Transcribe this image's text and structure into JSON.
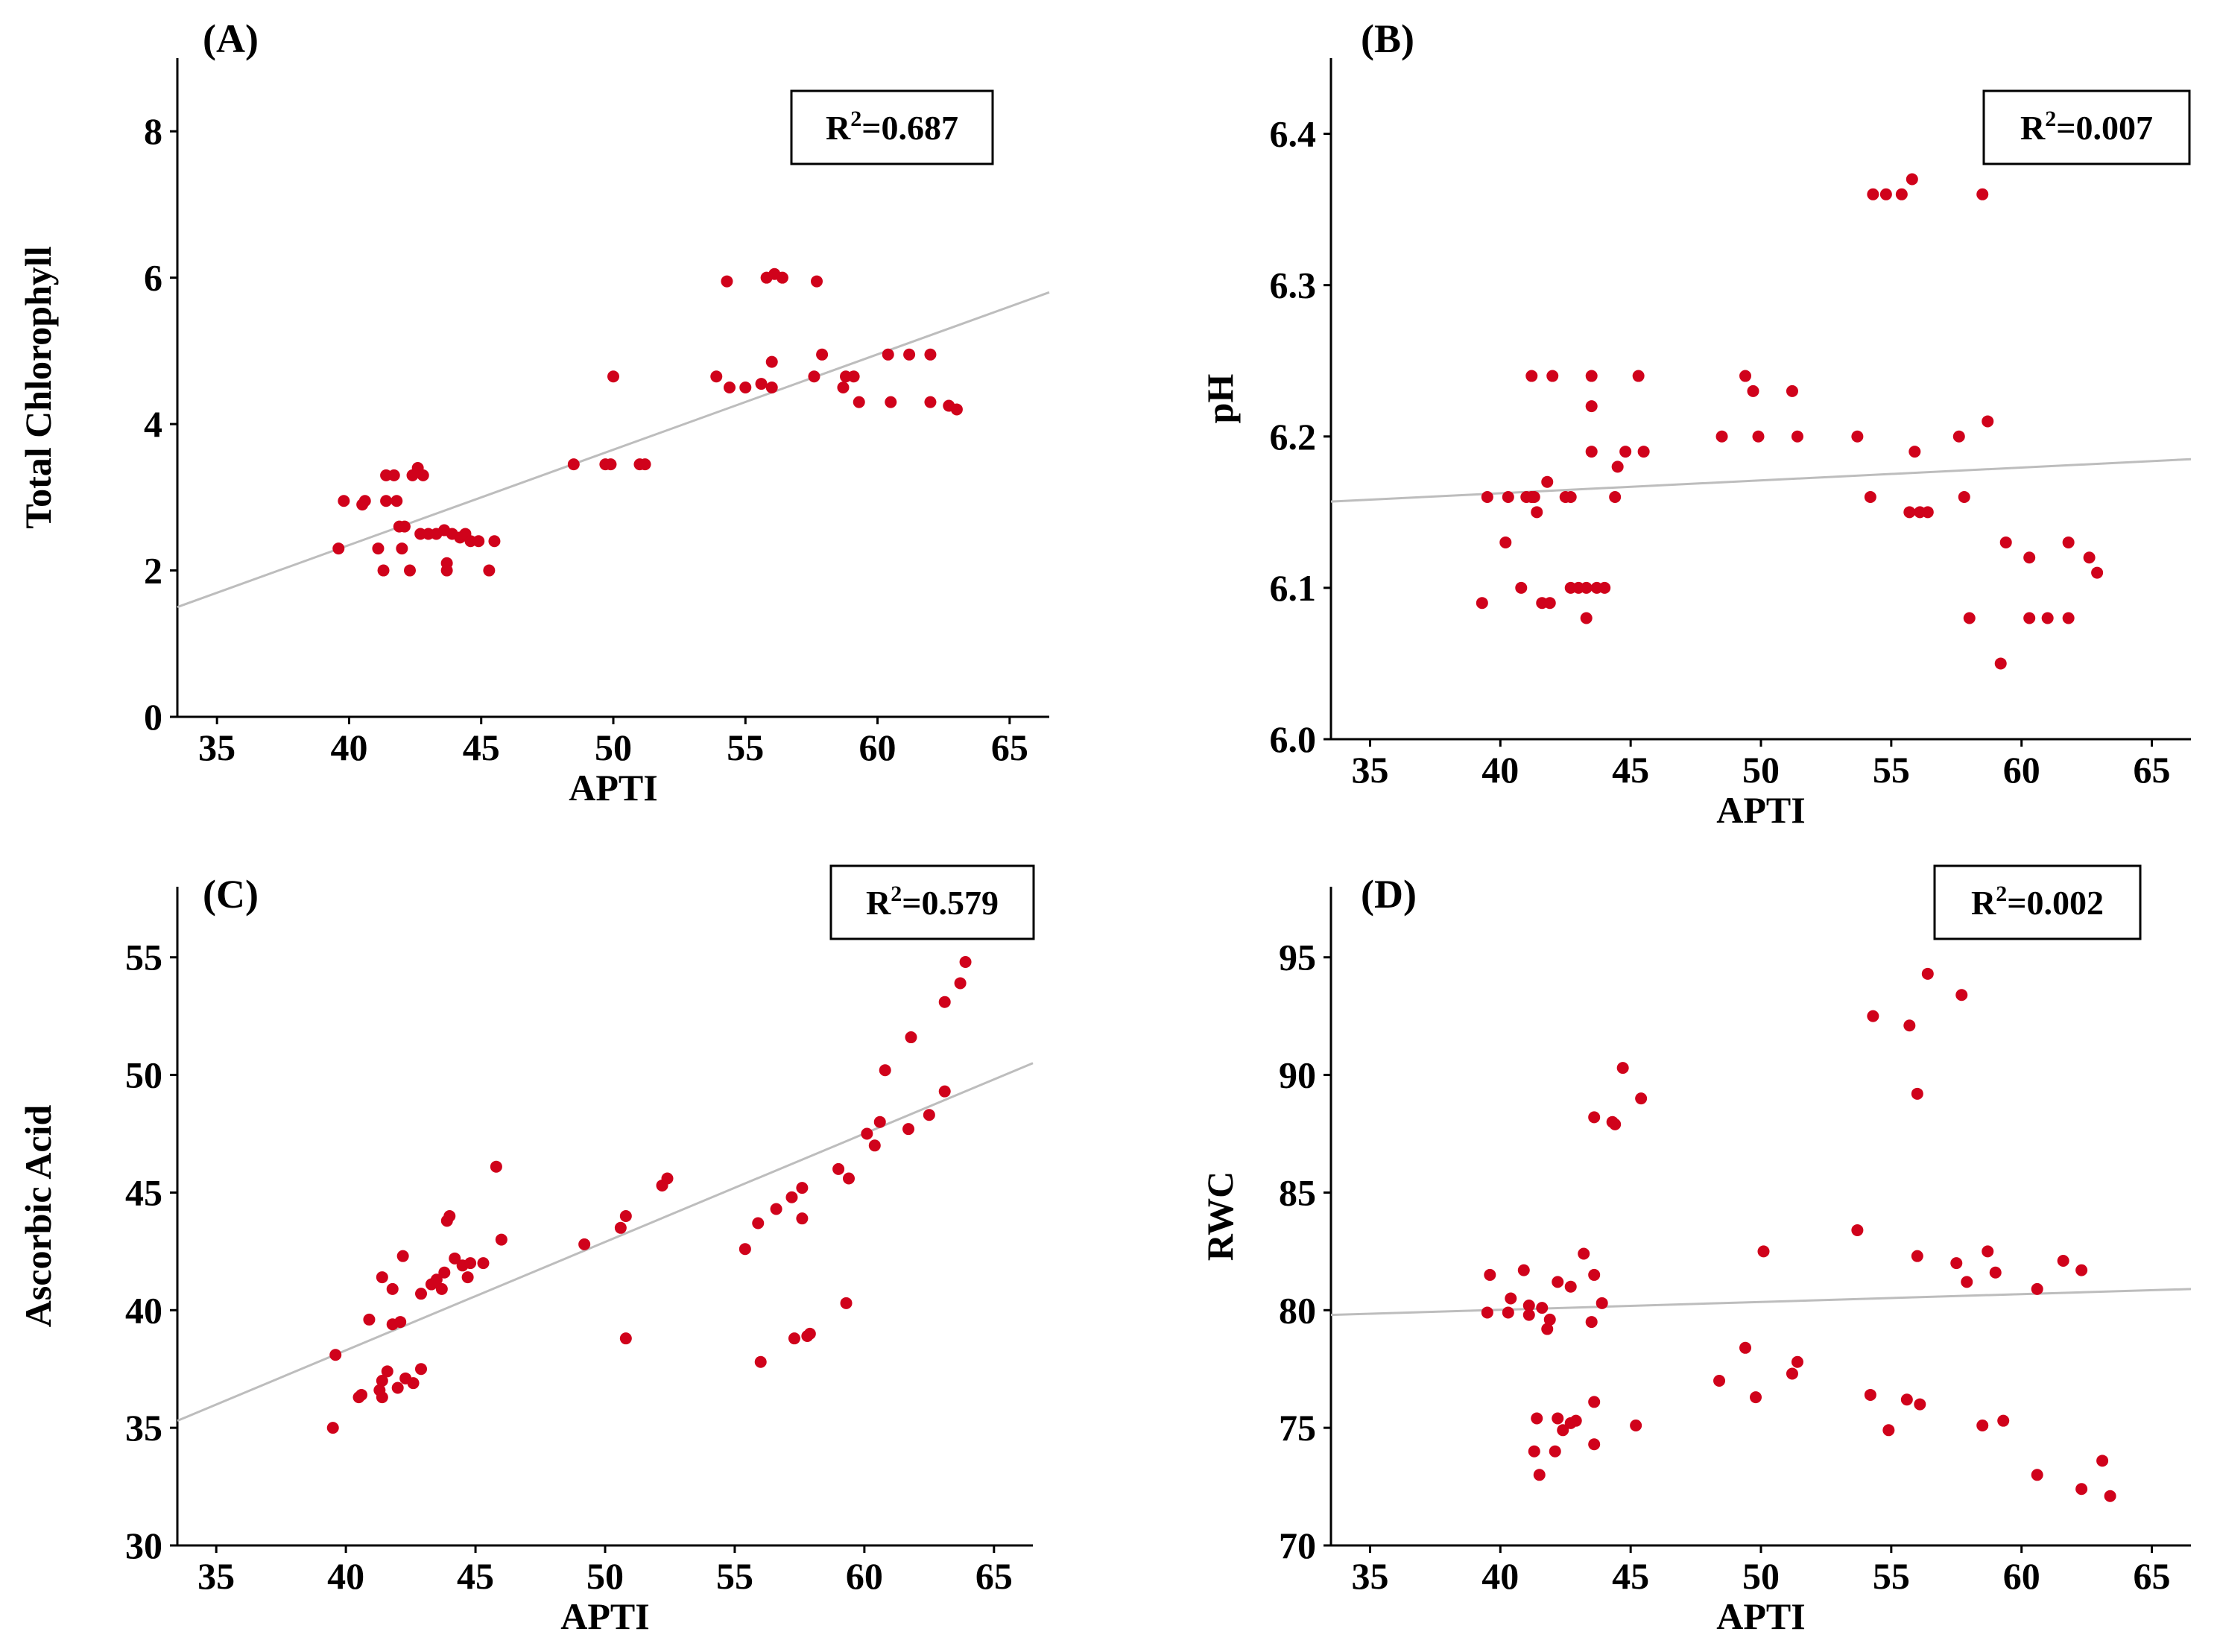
{
  "chart_data": [
    {
      "type": "scatter",
      "panel_label": "(A)",
      "xlabel": "APTI",
      "ylabel": "Total Chlorophyll",
      "xlim": [
        33.5,
        66.5
      ],
      "ylim": [
        0,
        9
      ],
      "xticks": [
        35,
        40,
        45,
        50,
        55,
        60,
        65
      ],
      "yticks": [
        0,
        2,
        4,
        6,
        8
      ],
      "r2_base": "R",
      "r2_sup": "2",
      "r2_value": "=0.687",
      "point_color": "#d0021b",
      "line_color": "#bdbdbd",
      "fit_line": {
        "x": [
          33.5,
          66.5
        ],
        "y": [
          1.5,
          5.8
        ]
      },
      "points": [
        [
          39.6,
          2.3
        ],
        [
          39.8,
          2.95
        ],
        [
          40.5,
          2.9
        ],
        [
          40.6,
          2.95
        ],
        [
          41.1,
          2.3
        ],
        [
          41.3,
          2.0
        ],
        [
          41.4,
          3.3
        ],
        [
          41.4,
          2.95
        ],
        [
          41.7,
          3.3
        ],
        [
          41.8,
          2.95
        ],
        [
          41.9,
          2.6
        ],
        [
          42.0,
          2.3
        ],
        [
          42.1,
          2.6
        ],
        [
          42.3,
          2.0
        ],
        [
          42.4,
          3.3
        ],
        [
          42.6,
          3.4
        ],
        [
          42.7,
          2.5
        ],
        [
          42.8,
          3.3
        ],
        [
          43.0,
          2.5
        ],
        [
          43.3,
          2.5
        ],
        [
          43.6,
          2.55
        ],
        [
          43.7,
          2.1
        ],
        [
          43.7,
          2.0
        ],
        [
          43.9,
          2.5
        ],
        [
          44.2,
          2.45
        ],
        [
          44.4,
          2.5
        ],
        [
          44.6,
          2.4
        ],
        [
          44.9,
          2.4
        ],
        [
          45.3,
          2.0
        ],
        [
          45.5,
          2.4
        ],
        [
          48.5,
          3.45
        ],
        [
          49.7,
          3.45
        ],
        [
          49.9,
          3.45
        ],
        [
          50.0,
          4.65
        ],
        [
          51.0,
          3.45
        ],
        [
          51.2,
          3.45
        ],
        [
          53.9,
          4.65
        ],
        [
          54.3,
          5.95
        ],
        [
          54.4,
          4.5
        ],
        [
          55.0,
          4.5
        ],
        [
          55.6,
          4.55
        ],
        [
          55.8,
          6.0
        ],
        [
          56.0,
          4.85
        ],
        [
          56.0,
          4.5
        ],
        [
          56.1,
          6.05
        ],
        [
          56.4,
          6.0
        ],
        [
          57.6,
          4.65
        ],
        [
          57.7,
          5.95
        ],
        [
          57.9,
          4.95
        ],
        [
          58.7,
          4.5
        ],
        [
          58.8,
          4.65
        ],
        [
          59.1,
          4.65
        ],
        [
          59.3,
          4.3
        ],
        [
          60.4,
          4.95
        ],
        [
          60.5,
          4.3
        ],
        [
          61.2,
          4.95
        ],
        [
          62.0,
          4.95
        ],
        [
          62.0,
          4.3
        ],
        [
          62.7,
          4.25
        ],
        [
          63.0,
          4.2
        ]
      ]
    },
    {
      "type": "scatter",
      "panel_label": "(B)",
      "xlabel": "APTI",
      "ylabel": "pH",
      "xlim": [
        33.5,
        66.5
      ],
      "ylim": [
        6.0,
        6.45
      ],
      "xticks": [
        35,
        40,
        45,
        50,
        55,
        60,
        65
      ],
      "yticks": [
        6.0,
        6.1,
        6.2,
        6.3,
        6.4
      ],
      "r2_base": "R",
      "r2_sup": "2",
      "r2_value": "=0.007",
      "point_color": "#d0021b",
      "line_color": "#bdbdbd",
      "fit_line": {
        "x": [
          33.5,
          66.5
        ],
        "y": [
          6.157,
          6.185
        ]
      },
      "points": [
        [
          39.3,
          6.09
        ],
        [
          39.5,
          6.16
        ],
        [
          40.2,
          6.13
        ],
        [
          40.3,
          6.16
        ],
        [
          40.8,
          6.1
        ],
        [
          41.0,
          6.16
        ],
        [
          41.2,
          6.24
        ],
        [
          41.2,
          6.16
        ],
        [
          41.3,
          6.16
        ],
        [
          41.4,
          6.15
        ],
        [
          41.6,
          6.09
        ],
        [
          41.8,
          6.17
        ],
        [
          41.9,
          6.09
        ],
        [
          42.0,
          6.24
        ],
        [
          42.5,
          6.16
        ],
        [
          42.7,
          6.16
        ],
        [
          42.7,
          6.1
        ],
        [
          43.0,
          6.1
        ],
        [
          43.3,
          6.1
        ],
        [
          43.3,
          6.08
        ],
        [
          43.5,
          6.24
        ],
        [
          43.5,
          6.22
        ],
        [
          43.5,
          6.19
        ],
        [
          43.7,
          6.1
        ],
        [
          44.0,
          6.1
        ],
        [
          44.4,
          6.16
        ],
        [
          44.5,
          6.18
        ],
        [
          44.8,
          6.19
        ],
        [
          45.3,
          6.24
        ],
        [
          45.5,
          6.19
        ],
        [
          48.5,
          6.2
        ],
        [
          49.4,
          6.24
        ],
        [
          49.7,
          6.23
        ],
        [
          49.9,
          6.2
        ],
        [
          51.2,
          6.23
        ],
        [
          51.4,
          6.2
        ],
        [
          53.7,
          6.2
        ],
        [
          54.2,
          6.16
        ],
        [
          54.3,
          6.36
        ],
        [
          54.8,
          6.36
        ],
        [
          55.4,
          6.36
        ],
        [
          55.7,
          6.15
        ],
        [
          55.8,
          6.37
        ],
        [
          55.9,
          6.19
        ],
        [
          56.1,
          6.15
        ],
        [
          56.4,
          6.15
        ],
        [
          57.6,
          6.2
        ],
        [
          57.8,
          6.16
        ],
        [
          58.0,
          6.08
        ],
        [
          58.5,
          6.36
        ],
        [
          58.7,
          6.21
        ],
        [
          59.2,
          6.05
        ],
        [
          59.4,
          6.13
        ],
        [
          60.3,
          6.12
        ],
        [
          60.3,
          6.08
        ],
        [
          61.0,
          6.08
        ],
        [
          61.8,
          6.08
        ],
        [
          61.8,
          6.13
        ],
        [
          62.6,
          6.12
        ],
        [
          62.9,
          6.11
        ]
      ]
    },
    {
      "type": "scatter",
      "panel_label": "(C)",
      "xlabel": "APTI",
      "ylabel": "Ascorbic Acid",
      "xlim": [
        33.5,
        66.5
      ],
      "ylim": [
        30,
        58
      ],
      "xticks": [
        35,
        40,
        45,
        50,
        55,
        60,
        65
      ],
      "yticks": [
        30,
        35,
        40,
        45,
        50,
        55
      ],
      "r2_base": "R",
      "r2_sup": "2",
      "r2_value": "=0.579",
      "point_color": "#d0021b",
      "line_color": "#bdbdbd",
      "fit_line": {
        "x": [
          33.5,
          66.5
        ],
        "y": [
          35.3,
          50.5
        ]
      },
      "points": [
        [
          39.5,
          35.0
        ],
        [
          39.6,
          38.1
        ],
        [
          40.5,
          36.3
        ],
        [
          40.6,
          36.4
        ],
        [
          40.9,
          39.6
        ],
        [
          41.3,
          36.6
        ],
        [
          41.4,
          36.3
        ],
        [
          41.4,
          37.0
        ],
        [
          41.4,
          41.4
        ],
        [
          41.6,
          37.4
        ],
        [
          41.8,
          39.4
        ],
        [
          41.8,
          40.9
        ],
        [
          42.0,
          36.7
        ],
        [
          42.1,
          39.5
        ],
        [
          42.2,
          42.3
        ],
        [
          42.3,
          37.1
        ],
        [
          42.6,
          36.9
        ],
        [
          42.9,
          40.7
        ],
        [
          42.9,
          37.5
        ],
        [
          43.3,
          41.1
        ],
        [
          43.5,
          41.3
        ],
        [
          43.7,
          40.9
        ],
        [
          43.8,
          41.6
        ],
        [
          43.9,
          43.8
        ],
        [
          44.0,
          44.0
        ],
        [
          44.2,
          42.2
        ],
        [
          44.5,
          41.9
        ],
        [
          44.7,
          41.4
        ],
        [
          44.8,
          42.0
        ],
        [
          45.3,
          42.0
        ],
        [
          45.8,
          46.1
        ],
        [
          46.0,
          43.0
        ],
        [
          49.2,
          42.8
        ],
        [
          50.6,
          43.5
        ],
        [
          50.8,
          44.0
        ],
        [
          50.8,
          38.8
        ],
        [
          52.2,
          45.3
        ],
        [
          52.4,
          45.6
        ],
        [
          55.4,
          42.6
        ],
        [
          55.9,
          43.7
        ],
        [
          56.0,
          37.8
        ],
        [
          56.6,
          44.3
        ],
        [
          57.2,
          44.8
        ],
        [
          57.3,
          38.8
        ],
        [
          57.6,
          45.2
        ],
        [
          57.6,
          43.9
        ],
        [
          57.8,
          38.9
        ],
        [
          57.9,
          39.0
        ],
        [
          59.0,
          46.0
        ],
        [
          59.3,
          40.3
        ],
        [
          59.4,
          45.6
        ],
        [
          60.1,
          47.5
        ],
        [
          60.4,
          47.0
        ],
        [
          60.6,
          48.0
        ],
        [
          60.8,
          50.2
        ],
        [
          61.7,
          47.7
        ],
        [
          61.8,
          51.6
        ],
        [
          62.5,
          48.3
        ],
        [
          63.1,
          49.3
        ],
        [
          63.1,
          53.1
        ],
        [
          63.7,
          53.9
        ],
        [
          63.9,
          54.8
        ]
      ]
    },
    {
      "type": "scatter",
      "panel_label": "(D)",
      "xlabel": "APTI",
      "ylabel": "RWC",
      "xlim": [
        33.5,
        66.5
      ],
      "ylim": [
        70,
        98
      ],
      "xticks": [
        35,
        40,
        45,
        50,
        55,
        60,
        65
      ],
      "yticks": [
        70,
        75,
        80,
        85,
        90,
        95
      ],
      "r2_base": "R",
      "r2_sup": "2",
      "r2_value": "=0.002",
      "point_color": "#d0021b",
      "line_color": "#bdbdbd",
      "fit_line": {
        "x": [
          33.5,
          66.5
        ],
        "y": [
          79.8,
          80.9
        ]
      },
      "points": [
        [
          39.5,
          79.9
        ],
        [
          39.6,
          81.5
        ],
        [
          40.3,
          79.9
        ],
        [
          40.4,
          80.5
        ],
        [
          40.9,
          81.7
        ],
        [
          41.1,
          80.2
        ],
        [
          41.1,
          79.8
        ],
        [
          41.3,
          74.0
        ],
        [
          41.4,
          75.4
        ],
        [
          41.5,
          73.0
        ],
        [
          41.6,
          80.1
        ],
        [
          41.8,
          79.2
        ],
        [
          41.9,
          79.6
        ],
        [
          42.1,
          74.0
        ],
        [
          42.2,
          75.4
        ],
        [
          42.2,
          81.2
        ],
        [
          42.4,
          74.9
        ],
        [
          42.7,
          81.0
        ],
        [
          42.7,
          75.2
        ],
        [
          42.9,
          75.3
        ],
        [
          43.2,
          82.4
        ],
        [
          43.5,
          79.5
        ],
        [
          43.6,
          74.3
        ],
        [
          43.6,
          81.5
        ],
        [
          43.6,
          76.1
        ],
        [
          43.6,
          88.2
        ],
        [
          43.9,
          80.3
        ],
        [
          44.3,
          88.0
        ],
        [
          44.4,
          87.9
        ],
        [
          44.7,
          90.3
        ],
        [
          45.2,
          75.1
        ],
        [
          45.4,
          89.0
        ],
        [
          48.4,
          77.0
        ],
        [
          49.4,
          78.4
        ],
        [
          49.8,
          76.3
        ],
        [
          50.1,
          82.5
        ],
        [
          51.2,
          77.3
        ],
        [
          51.4,
          77.8
        ],
        [
          53.7,
          83.4
        ],
        [
          54.2,
          76.4
        ],
        [
          54.3,
          92.5
        ],
        [
          54.9,
          74.9
        ],
        [
          55.6,
          76.2
        ],
        [
          55.7,
          92.1
        ],
        [
          56.0,
          89.2
        ],
        [
          56.0,
          82.3
        ],
        [
          56.1,
          76.0
        ],
        [
          56.4,
          94.3
        ],
        [
          57.5,
          82.0
        ],
        [
          57.7,
          93.4
        ],
        [
          57.9,
          81.2
        ],
        [
          58.5,
          75.1
        ],
        [
          58.7,
          82.5
        ],
        [
          59.0,
          81.6
        ],
        [
          59.3,
          75.3
        ],
        [
          60.6,
          73.0
        ],
        [
          60.6,
          80.9
        ],
        [
          61.6,
          82.1
        ],
        [
          62.3,
          81.7
        ],
        [
          62.3,
          72.4
        ],
        [
          63.1,
          73.6
        ],
        [
          63.4,
          72.1
        ]
      ]
    }
  ]
}
